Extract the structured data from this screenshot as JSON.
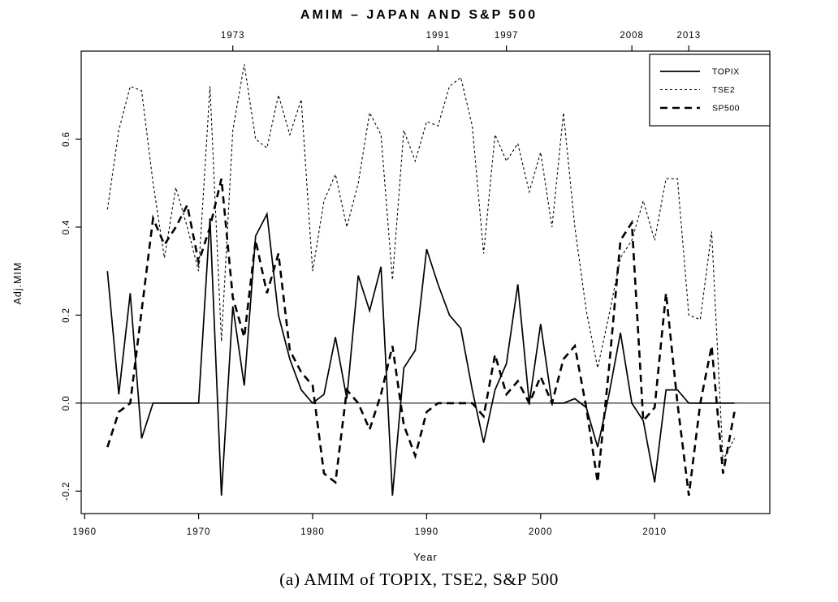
{
  "title": "AMIM – JAPAN AND S&P 500",
  "caption": "(a) AMIM of TOPIX, TSE2, S&P 500",
  "chart_data": {
    "type": "line",
    "title": "AMIM – JAPAN AND S&P 500",
    "xlabel": "Year",
    "ylabel": "Adj.MIM",
    "x_ticks_bottom": [
      1960,
      1970,
      1980,
      1990,
      2000,
      2010
    ],
    "x_ticks_top": [
      1973,
      1991,
      1997,
      2008,
      2013
    ],
    "y_ticks": [
      -0.2,
      0.0,
      0.2,
      0.4,
      0.6
    ],
    "xlim": [
      1959.7,
      2020.1
    ],
    "ylim": [
      -0.251,
      0.8
    ],
    "zero_line": true,
    "grid": false,
    "legend_position": "top-right",
    "line_color": "#000000",
    "x": [
      1962,
      1963,
      1964,
      1965,
      1966,
      1967,
      1968,
      1969,
      1970,
      1971,
      1972,
      1973,
      1974,
      1975,
      1976,
      1977,
      1978,
      1979,
      1980,
      1981,
      1982,
      1983,
      1984,
      1985,
      1986,
      1987,
      1988,
      1989,
      1990,
      1991,
      1992,
      1993,
      1994,
      1995,
      1996,
      1997,
      1998,
      1999,
      2000,
      2001,
      2002,
      2003,
      2004,
      2005,
      2006,
      2007,
      2008,
      2009,
      2010,
      2011,
      2012,
      2013,
      2014,
      2015,
      2016,
      2017
    ],
    "series": [
      {
        "name": "TOPIX",
        "style": "solid",
        "values": [
          0.3,
          0.02,
          0.25,
          -0.08,
          0.0,
          0.0,
          0.0,
          0.0,
          0.0,
          0.42,
          -0.21,
          0.22,
          0.04,
          0.38,
          0.43,
          0.2,
          0.1,
          0.03,
          0.0,
          0.02,
          0.15,
          0.01,
          0.29,
          0.21,
          0.31,
          -0.21,
          0.08,
          0.12,
          0.35,
          0.27,
          0.2,
          0.17,
          0.03,
          -0.09,
          0.03,
          0.09,
          0.27,
          0.0,
          0.18,
          0.0,
          0.0,
          0.01,
          -0.01,
          -0.1,
          0.02,
          0.16,
          0.0,
          -0.04,
          -0.18,
          0.03,
          0.03,
          0.0,
          0.0,
          0.0,
          0.0,
          0.0
        ]
      },
      {
        "name": "TSE2",
        "style": "dashed-fine",
        "values": [
          0.44,
          0.62,
          0.72,
          0.71,
          0.5,
          0.33,
          0.49,
          0.4,
          0.3,
          0.72,
          0.14,
          0.62,
          0.77,
          0.6,
          0.58,
          0.7,
          0.61,
          0.69,
          0.3,
          0.46,
          0.52,
          0.4,
          0.5,
          0.66,
          0.61,
          0.28,
          0.62,
          0.55,
          0.64,
          0.63,
          0.72,
          0.74,
          0.63,
          0.34,
          0.61,
          0.55,
          0.59,
          0.48,
          0.57,
          0.4,
          0.66,
          0.4,
          0.21,
          0.08,
          0.2,
          0.33,
          0.37,
          0.46,
          0.37,
          0.51,
          0.51,
          0.2,
          0.19,
          0.39,
          -0.13,
          -0.08
        ]
      },
      {
        "name": "SP500",
        "style": "dashed-bold",
        "values": [
          -0.1,
          -0.02,
          0.0,
          0.21,
          0.42,
          0.36,
          0.4,
          0.45,
          0.32,
          0.4,
          0.51,
          0.24,
          0.15,
          0.37,
          0.25,
          0.34,
          0.12,
          0.07,
          0.04,
          -0.16,
          -0.18,
          0.03,
          0.0,
          -0.06,
          0.02,
          0.13,
          -0.05,
          -0.12,
          -0.02,
          0.0,
          0.0,
          0.0,
          0.0,
          -0.03,
          0.11,
          0.02,
          0.05,
          0.0,
          0.06,
          0.0,
          0.1,
          0.13,
          -0.01,
          -0.18,
          0.08,
          0.37,
          0.41,
          -0.04,
          -0.01,
          0.25,
          0.0,
          -0.21,
          0.0,
          0.13,
          -0.16,
          -0.02
        ]
      }
    ]
  }
}
